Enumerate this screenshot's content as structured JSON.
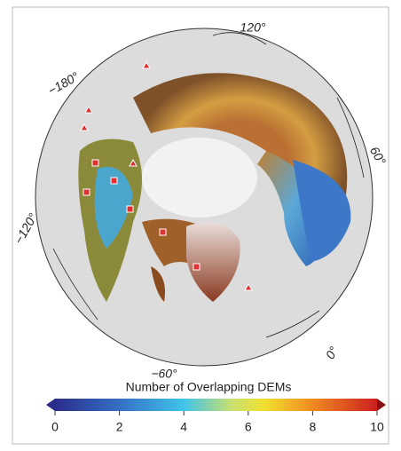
{
  "map": {
    "longitude_labels": [
      "120°",
      "60°",
      "0°",
      "−60°",
      "−120°",
      "−180°"
    ],
    "colorbar": {
      "label": "Number of Overlapping DEMs",
      "lim": [
        0,
        10
      ],
      "ticks": [
        0,
        2,
        4,
        6,
        8,
        10
      ]
    }
  }
}
